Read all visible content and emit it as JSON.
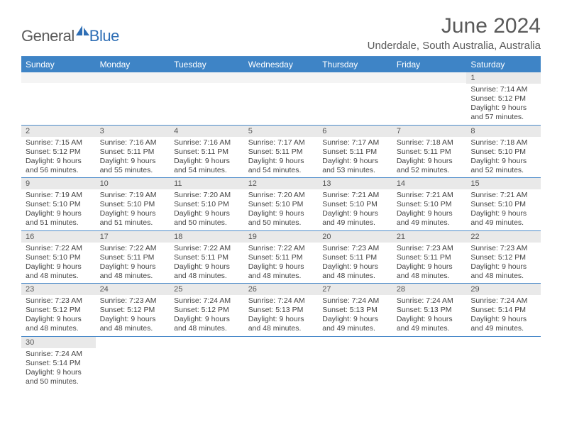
{
  "logo": {
    "text1": "General",
    "text2": "Blue",
    "icon_color": "#2e6eb5"
  },
  "title": "June 2024",
  "location": "Underdale, South Australia, Australia",
  "colors": {
    "header_bg": "#3e84c6",
    "header_text": "#ffffff",
    "rule": "#4a8ac9",
    "daynum_bg": "#e9e9e9",
    "blank_bg": "#f4f4f4",
    "text": "#444444"
  },
  "day_names": [
    "Sunday",
    "Monday",
    "Tuesday",
    "Wednesday",
    "Thursday",
    "Friday",
    "Saturday"
  ],
  "weeks": [
    [
      null,
      null,
      null,
      null,
      null,
      null,
      {
        "n": "1",
        "sunrise": "7:14 AM",
        "sunset": "5:12 PM",
        "daylight": "9 hours and 57 minutes."
      }
    ],
    [
      {
        "n": "2",
        "sunrise": "7:15 AM",
        "sunset": "5:12 PM",
        "daylight": "9 hours and 56 minutes."
      },
      {
        "n": "3",
        "sunrise": "7:16 AM",
        "sunset": "5:11 PM",
        "daylight": "9 hours and 55 minutes."
      },
      {
        "n": "4",
        "sunrise": "7:16 AM",
        "sunset": "5:11 PM",
        "daylight": "9 hours and 54 minutes."
      },
      {
        "n": "5",
        "sunrise": "7:17 AM",
        "sunset": "5:11 PM",
        "daylight": "9 hours and 54 minutes."
      },
      {
        "n": "6",
        "sunrise": "7:17 AM",
        "sunset": "5:11 PM",
        "daylight": "9 hours and 53 minutes."
      },
      {
        "n": "7",
        "sunrise": "7:18 AM",
        "sunset": "5:11 PM",
        "daylight": "9 hours and 52 minutes."
      },
      {
        "n": "8",
        "sunrise": "7:18 AM",
        "sunset": "5:10 PM",
        "daylight": "9 hours and 52 minutes."
      }
    ],
    [
      {
        "n": "9",
        "sunrise": "7:19 AM",
        "sunset": "5:10 PM",
        "daylight": "9 hours and 51 minutes."
      },
      {
        "n": "10",
        "sunrise": "7:19 AM",
        "sunset": "5:10 PM",
        "daylight": "9 hours and 51 minutes."
      },
      {
        "n": "11",
        "sunrise": "7:20 AM",
        "sunset": "5:10 PM",
        "daylight": "9 hours and 50 minutes."
      },
      {
        "n": "12",
        "sunrise": "7:20 AM",
        "sunset": "5:10 PM",
        "daylight": "9 hours and 50 minutes."
      },
      {
        "n": "13",
        "sunrise": "7:21 AM",
        "sunset": "5:10 PM",
        "daylight": "9 hours and 49 minutes."
      },
      {
        "n": "14",
        "sunrise": "7:21 AM",
        "sunset": "5:10 PM",
        "daylight": "9 hours and 49 minutes."
      },
      {
        "n": "15",
        "sunrise": "7:21 AM",
        "sunset": "5:10 PM",
        "daylight": "9 hours and 49 minutes."
      }
    ],
    [
      {
        "n": "16",
        "sunrise": "7:22 AM",
        "sunset": "5:10 PM",
        "daylight": "9 hours and 48 minutes."
      },
      {
        "n": "17",
        "sunrise": "7:22 AM",
        "sunset": "5:11 PM",
        "daylight": "9 hours and 48 minutes."
      },
      {
        "n": "18",
        "sunrise": "7:22 AM",
        "sunset": "5:11 PM",
        "daylight": "9 hours and 48 minutes."
      },
      {
        "n": "19",
        "sunrise": "7:22 AM",
        "sunset": "5:11 PM",
        "daylight": "9 hours and 48 minutes."
      },
      {
        "n": "20",
        "sunrise": "7:23 AM",
        "sunset": "5:11 PM",
        "daylight": "9 hours and 48 minutes."
      },
      {
        "n": "21",
        "sunrise": "7:23 AM",
        "sunset": "5:11 PM",
        "daylight": "9 hours and 48 minutes."
      },
      {
        "n": "22",
        "sunrise": "7:23 AM",
        "sunset": "5:12 PM",
        "daylight": "9 hours and 48 minutes."
      }
    ],
    [
      {
        "n": "23",
        "sunrise": "7:23 AM",
        "sunset": "5:12 PM",
        "daylight": "9 hours and 48 minutes."
      },
      {
        "n": "24",
        "sunrise": "7:23 AM",
        "sunset": "5:12 PM",
        "daylight": "9 hours and 48 minutes."
      },
      {
        "n": "25",
        "sunrise": "7:24 AM",
        "sunset": "5:12 PM",
        "daylight": "9 hours and 48 minutes."
      },
      {
        "n": "26",
        "sunrise": "7:24 AM",
        "sunset": "5:13 PM",
        "daylight": "9 hours and 48 minutes."
      },
      {
        "n": "27",
        "sunrise": "7:24 AM",
        "sunset": "5:13 PM",
        "daylight": "9 hours and 49 minutes."
      },
      {
        "n": "28",
        "sunrise": "7:24 AM",
        "sunset": "5:13 PM",
        "daylight": "9 hours and 49 minutes."
      },
      {
        "n": "29",
        "sunrise": "7:24 AM",
        "sunset": "5:14 PM",
        "daylight": "9 hours and 49 minutes."
      }
    ],
    [
      {
        "n": "30",
        "sunrise": "7:24 AM",
        "sunset": "5:14 PM",
        "daylight": "9 hours and 50 minutes."
      },
      null,
      null,
      null,
      null,
      null,
      null
    ]
  ],
  "labels": {
    "sunrise": "Sunrise: ",
    "sunset": "Sunset: ",
    "daylight": "Daylight: "
  }
}
